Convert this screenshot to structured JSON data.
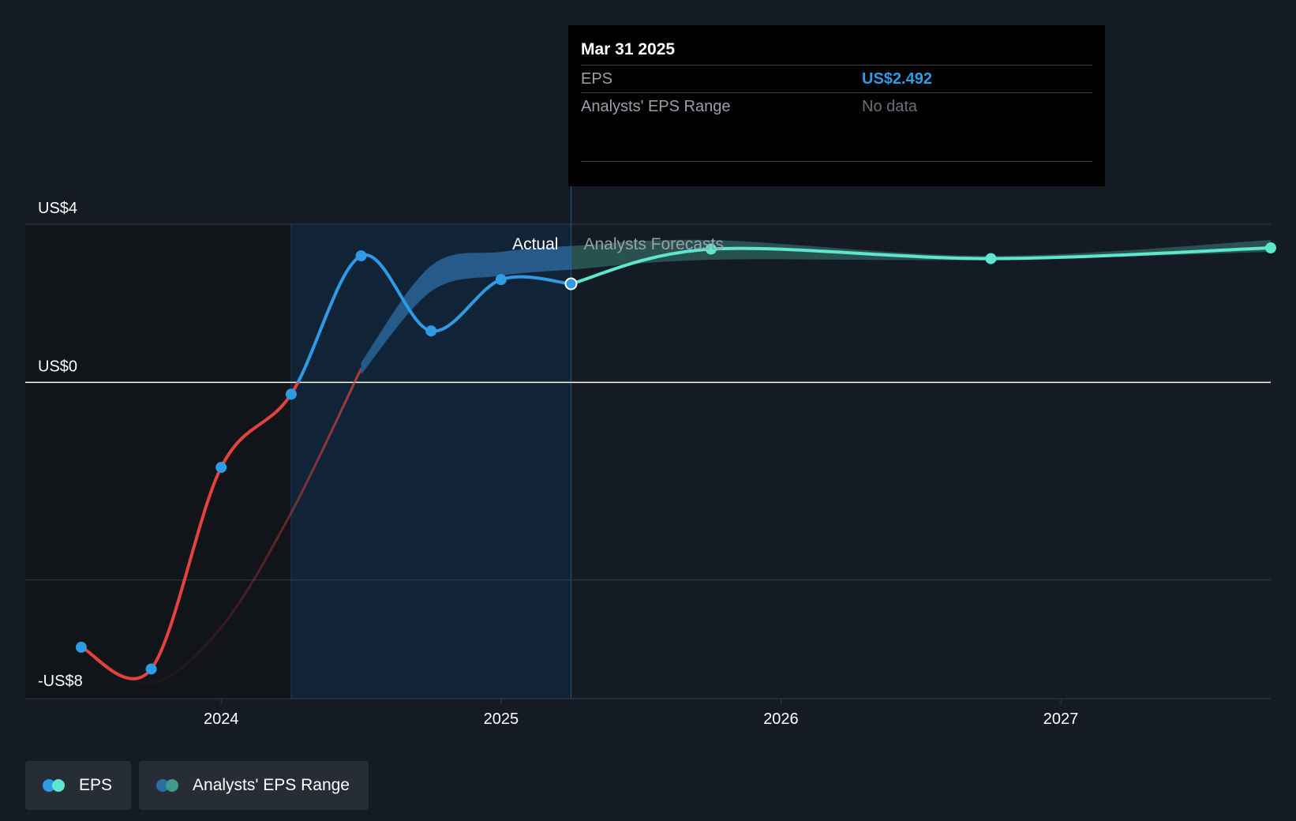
{
  "tooltip": {
    "date": "Mar 31 2025",
    "rows": [
      {
        "label": "EPS",
        "value": "US$2.492"
      },
      {
        "label": "Analysts' EPS Range",
        "value": "No data"
      }
    ]
  },
  "legend": [
    {
      "label": "EPS",
      "colors": [
        "#2f9be6",
        "#5ee6cf"
      ]
    },
    {
      "label": "Analysts' EPS Range",
      "colors": [
        "#2a6fa0",
        "#3f9c8c"
      ]
    }
  ],
  "colors": {
    "background": "#151b24",
    "eps_positive": "#2f9be6",
    "eps_negative": "#e2433f",
    "forecast": "#5ee6cf",
    "range_past": "#2a6496",
    "range_forecast": "#3a7d72"
  },
  "chart_data": {
    "type": "line",
    "y_tick_labels": [
      {
        "label": "US$4",
        "value": 4
      },
      {
        "label": "US$0",
        "value": 0
      },
      {
        "label": "-US$8",
        "value": -8
      }
    ],
    "gridline_values": [
      4,
      0,
      -5
    ],
    "ylim": [
      -8,
      4
    ],
    "x_tick_labels": [
      {
        "label": "2024",
        "value": 2024.0
      },
      {
        "label": "2025",
        "value": 2025.0
      },
      {
        "label": "2026",
        "value": 2026.0
      },
      {
        "label": "2027",
        "value": 2027.0
      }
    ],
    "xlim": [
      2023.3,
      2027.75
    ],
    "section_labels": {
      "actual": "Actual",
      "forecast": "Analysts Forecasts"
    },
    "highlight_period": [
      2024.25,
      2025.25
    ],
    "divider_x": 2025.25,
    "series": [
      {
        "name": "EPS",
        "kind": "actual",
        "points": [
          {
            "x": 2023.5,
            "y": -6.7
          },
          {
            "x": 2023.75,
            "y": -7.25
          },
          {
            "x": 2024.0,
            "y": -2.15
          },
          {
            "x": 2024.25,
            "y": -0.3
          },
          {
            "x": 2024.5,
            "y": 3.2
          },
          {
            "x": 2024.75,
            "y": 1.3
          },
          {
            "x": 2025.0,
            "y": 2.6
          },
          {
            "x": 2025.25,
            "y": 2.492
          }
        ]
      },
      {
        "name": "EPS",
        "kind": "forecast",
        "points": [
          {
            "x": 2025.25,
            "y": 2.492
          },
          {
            "x": 2025.75,
            "y": 3.37
          },
          {
            "x": 2026.75,
            "y": 3.13
          },
          {
            "x": 2027.75,
            "y": 3.4
          }
        ]
      },
      {
        "name": "Analysts' EPS Range",
        "kind": "range",
        "points": [
          {
            "x": 2023.5,
            "y_low": -6.7,
            "y_high": -6.7
          },
          {
            "x": 2023.75,
            "y_low": -7.6,
            "y_high": -7.6
          },
          {
            "x": 2024.0,
            "y_low": -6.2,
            "y_high": -6.2
          },
          {
            "x": 2024.25,
            "y_low": -3.3,
            "y_high": -3.3
          },
          {
            "x": 2024.5,
            "y_low": 0.2,
            "y_high": 0.5
          },
          {
            "x": 2024.75,
            "y_low": 2.3,
            "y_high": 2.95
          },
          {
            "x": 2025.0,
            "y_low": 2.7,
            "y_high": 3.3
          },
          {
            "x": 2025.25,
            "y_low": 2.85,
            "y_high": 3.45
          },
          {
            "x": 2025.75,
            "y_low": 3.1,
            "y_high": 3.6
          },
          {
            "x": 2026.75,
            "y_low": 3.1,
            "y_high": 3.2
          },
          {
            "x": 2027.75,
            "y_low": 3.3,
            "y_high": 3.6
          }
        ]
      }
    ]
  }
}
